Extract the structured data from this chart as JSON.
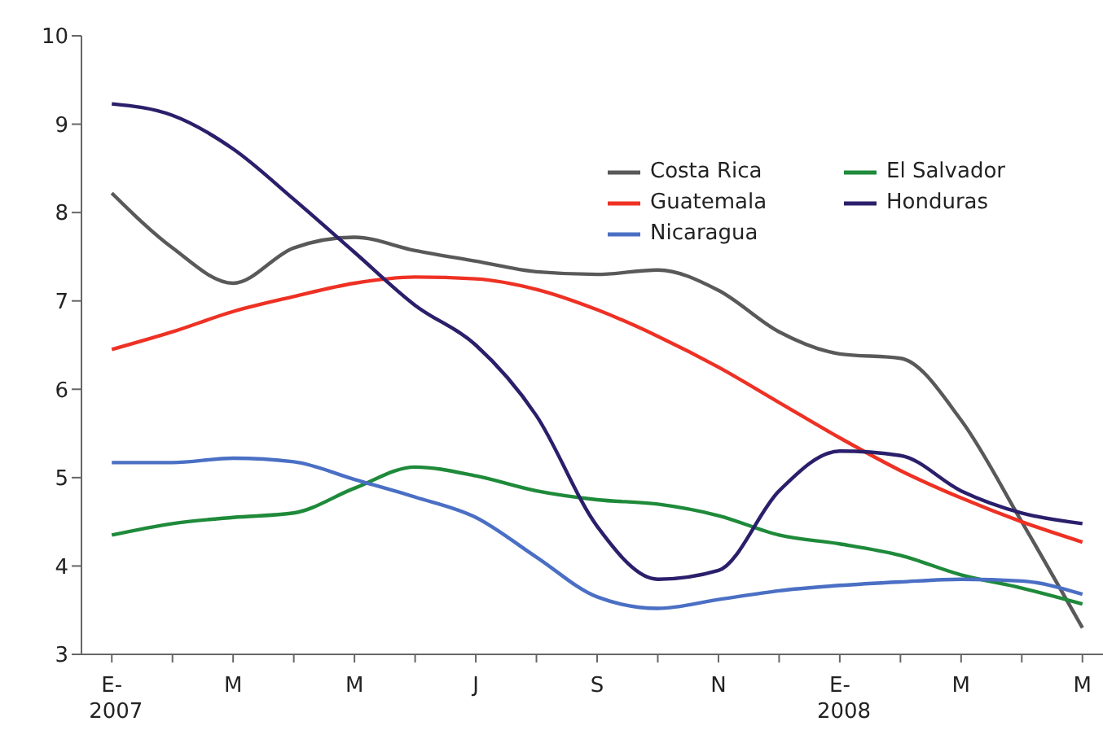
{
  "chart_data": {
    "type": "line",
    "categories": [
      "E-\n2007",
      null,
      "M",
      null,
      "M",
      null,
      "J",
      null,
      "S",
      null,
      "N",
      null,
      "E-\n2008",
      null,
      "M",
      null,
      "M"
    ],
    "series": [
      {
        "name": "Costa Rica",
        "color": "#595959",
        "values": [
          8.22,
          7.6,
          7.2,
          7.6,
          7.72,
          7.57,
          7.45,
          7.33,
          7.3,
          7.35,
          7.12,
          6.65,
          6.4,
          6.35,
          5.65,
          4.5,
          3.3
        ]
      },
      {
        "name": "El Salvador",
        "color": "#1e8a3a",
        "values": [
          4.35,
          4.48,
          4.55,
          4.6,
          4.88,
          5.12,
          5.02,
          4.85,
          4.75,
          4.7,
          4.57,
          4.35,
          4.25,
          4.12,
          3.9,
          3.75,
          3.57
        ]
      },
      {
        "name": "Guatemala",
        "color": "#ee3124",
        "values": [
          6.45,
          6.65,
          6.88,
          7.05,
          7.2,
          7.27,
          7.25,
          7.13,
          6.9,
          6.6,
          6.25,
          5.85,
          5.45,
          5.08,
          4.77,
          4.5,
          4.27
        ]
      },
      {
        "name": "Honduras",
        "color": "#2a1f6b",
        "values": [
          9.23,
          9.1,
          8.72,
          8.15,
          7.55,
          6.95,
          6.5,
          5.7,
          4.45,
          3.85,
          3.95,
          4.85,
          5.3,
          5.25,
          4.85,
          4.6,
          4.48
        ]
      },
      {
        "name": "Nicaragua",
        "color": "#4a6fc4",
        "values": [
          5.17,
          5.17,
          5.22,
          5.18,
          4.98,
          4.78,
          4.55,
          4.1,
          3.65,
          3.52,
          3.62,
          3.72,
          3.78,
          3.82,
          3.85,
          3.83,
          3.68
        ]
      }
    ],
    "ylim": [
      3,
      10
    ],
    "yticks": [
      3,
      4,
      5,
      6,
      7,
      8,
      9,
      10
    ],
    "grid": false,
    "legend": "top right",
    "marker": "none",
    "line_style": "solid"
  }
}
